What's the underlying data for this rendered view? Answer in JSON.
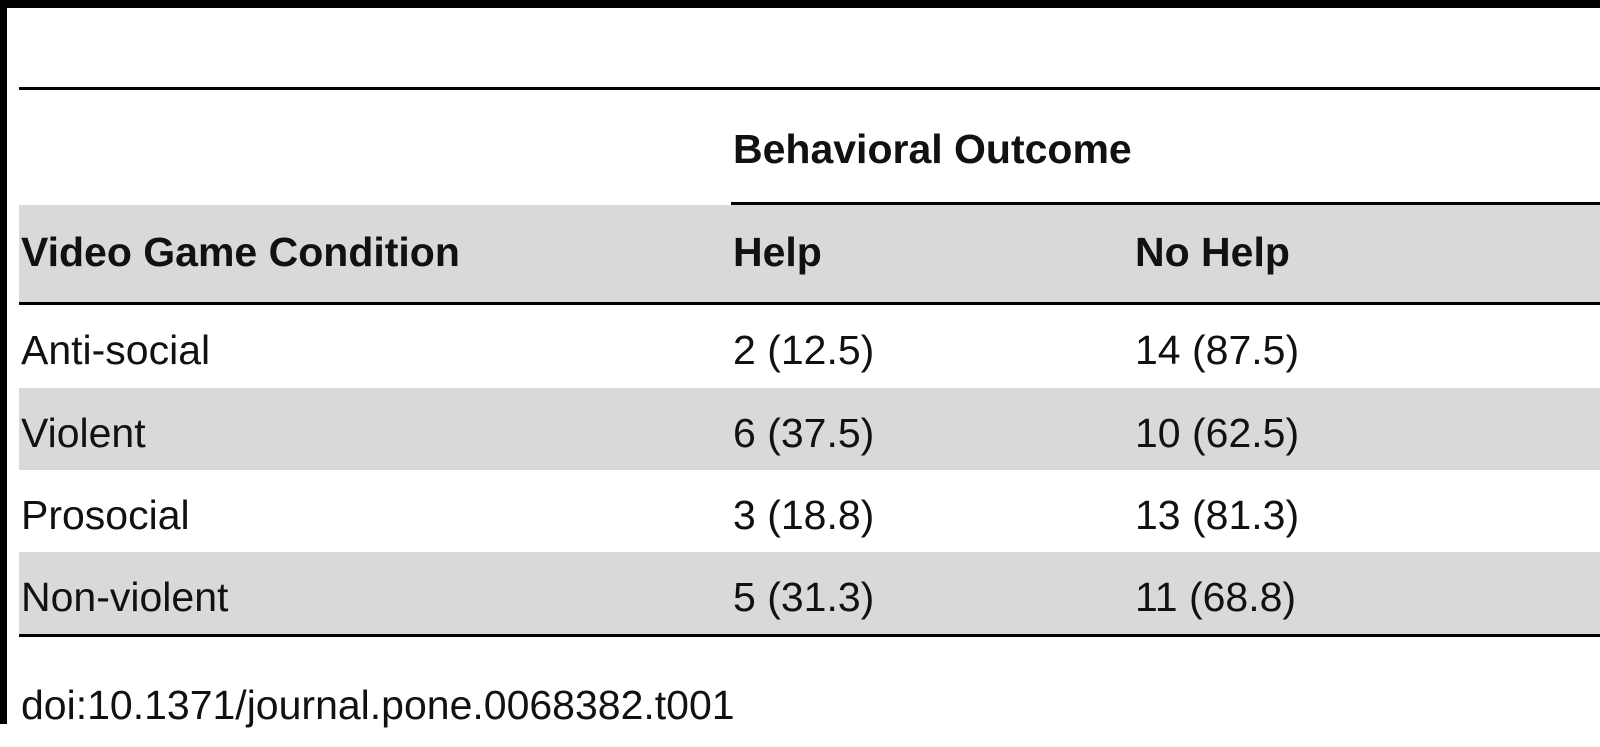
{
  "table": {
    "group_header": "Behavioral Outcome",
    "columns": [
      "Video Game Condition",
      "Help",
      "No Help"
    ],
    "rows": [
      {
        "condition": "Anti-social",
        "help": "2 (12.5)",
        "no_help": "14 (87.5)"
      },
      {
        "condition": "Violent",
        "help": "6 (37.5)",
        "no_help": "10 (62.5)"
      },
      {
        "condition": "Prosocial",
        "help": "3 (18.8)",
        "no_help": "13 (81.3)"
      },
      {
        "condition": "Non-violent",
        "help": "5 (31.3)",
        "no_help": "11 (68.8)"
      }
    ]
  },
  "doi": "doi:10.1371/journal.pone.0068382.t001"
}
